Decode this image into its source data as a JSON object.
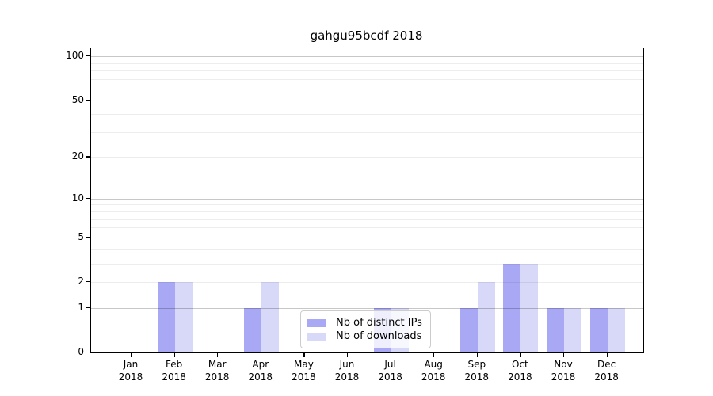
{
  "chart_data": {
    "type": "bar",
    "title": "gahgu95bcdf 2018",
    "categories": [
      "Jan",
      "Feb",
      "Mar",
      "Apr",
      "May",
      "Jun",
      "Jul",
      "Aug",
      "Sep",
      "Oct",
      "Nov",
      "Dec"
    ],
    "category_year": "2018",
    "series": [
      {
        "name": "Nb of distinct IPs",
        "color": "#a8a8f4",
        "values": [
          0,
          2,
          0,
          1,
          0,
          0,
          1,
          0,
          1,
          3,
          1,
          1
        ]
      },
      {
        "name": "Nb of downloads",
        "color": "#d8d8f8",
        "values": [
          0,
          2,
          0,
          2,
          0,
          0,
          1,
          0,
          2,
          3,
          1,
          1
        ]
      }
    ],
    "y_ticks": [
      0,
      1,
      2,
      5,
      10,
      20,
      50,
      100
    ],
    "y_scale": "log1p",
    "ylim": [
      0,
      113
    ],
    "grid": "horizontal-log-minor-and-major",
    "grid_on_top_of_bars": true,
    "legend_position": "inside-bottom-center-left"
  }
}
